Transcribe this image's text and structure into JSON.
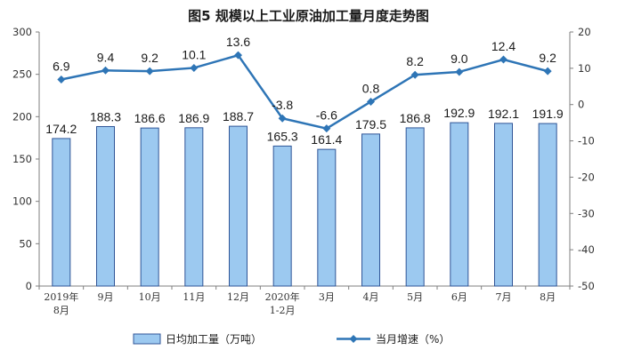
{
  "chart_data": {
    "type": "bar",
    "title": "图5  规模以上工业原油加工量月度走势图",
    "categories": [
      "2019年\n8月",
      "9月",
      "10月",
      "11月",
      "12月",
      "2020年\n1-2月",
      "3月",
      "4月",
      "5月",
      "6月",
      "7月",
      "8月"
    ],
    "series": [
      {
        "name": "日均加工量（万吨）",
        "type": "bar",
        "axis": "left",
        "color": "#9cc9f0",
        "values": [
          174.2,
          188.3,
          186.6,
          186.9,
          188.7,
          165.3,
          161.4,
          179.5,
          186.8,
          192.9,
          192.1,
          191.9
        ]
      },
      {
        "name": "当月增速（%）",
        "type": "line",
        "axis": "right",
        "color": "#2e75b6",
        "values": [
          6.9,
          9.4,
          9.2,
          10.1,
          13.6,
          -3.8,
          -6.6,
          0.8,
          8.2,
          9.0,
          12.4,
          9.2
        ]
      }
    ],
    "y_left": {
      "min": 0,
      "max": 300,
      "ticks": [
        0,
        50,
        100,
        150,
        200,
        250,
        300
      ]
    },
    "y_right": {
      "min": -50,
      "max": 20,
      "ticks": [
        -50,
        -40,
        -30,
        -20,
        -10,
        0,
        10,
        20
      ]
    },
    "grid": false,
    "legend_position": "bottom"
  }
}
